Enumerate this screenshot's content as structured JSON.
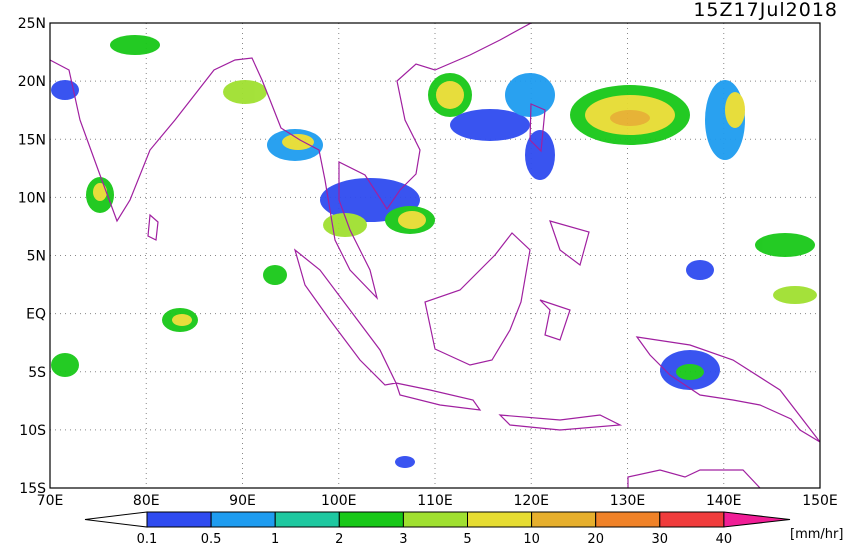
{
  "title": "15Z17Jul2018",
  "latitude_labels": [
    "25N",
    "20N",
    "15N",
    "10N",
    "5N",
    "EQ",
    "5S",
    "10S",
    "15S"
  ],
  "longitude_labels": [
    "70E",
    "80E",
    "90E",
    "100E",
    "110E",
    "120E",
    "130E",
    "140E",
    "150E"
  ],
  "colorbar": {
    "levels": [
      "0.1",
      "0.5",
      "1",
      "2",
      "3",
      "5",
      "10",
      "20",
      "30",
      "40"
    ],
    "colors": [
      "#2f4bf0",
      "#1e9cf0",
      "#1ec8a0",
      "#18c818",
      "#a0e030",
      "#e6dc32",
      "#e6af2d",
      "#f08228",
      "#f03c3c",
      "#f01e96"
    ],
    "unit": "[mm/hr]"
  }
}
